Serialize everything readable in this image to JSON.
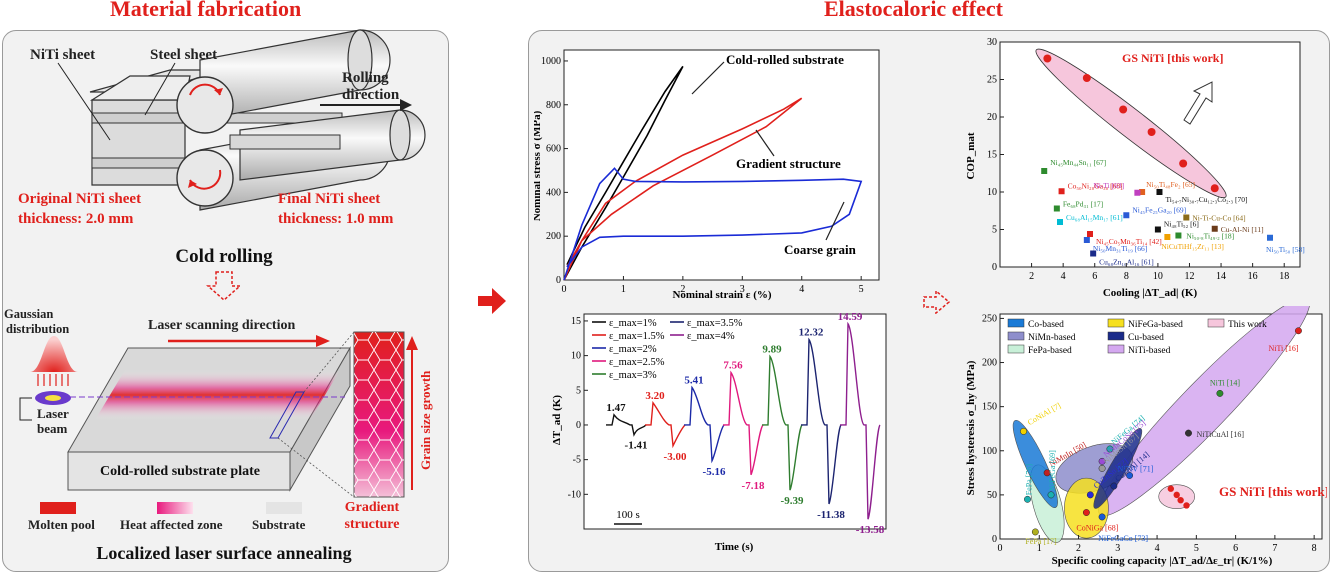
{
  "titles": {
    "left": "Material fabrication",
    "right": "Elastocaloric effect"
  },
  "fabrication": {
    "nitisheet": "NiTi sheet",
    "steelsheet": "Steel sheet",
    "rolling_dir_1": "Rolling",
    "rolling_dir_2": "direction",
    "orig_1": "Original NiTi sheet",
    "orig_2": "thickness: 2.0 mm",
    "final_1": "Final NiTi sheet",
    "final_2": "thickness: 1.0 mm",
    "cold_rolling": "Cold rolling",
    "gauss_1": "Gaussian",
    "gauss_2": "distribution",
    "laser_dir": "Laser scanning direction",
    "laser_1": "Laser",
    "laser_2": "beam",
    "substrate_plate": "Cold-rolled substrate plate",
    "grain_growth": "Grain size growth",
    "gradient_1": "Gradient",
    "gradient_2": "structure",
    "legend_molten": "Molten pool",
    "legend_haz": "Heat affected zone",
    "legend_sub": "Substrate",
    "annealing": "Localized laser surface annealing",
    "colors": {
      "red": "#e0201c",
      "magenta": "#e8197d"
    }
  },
  "chart_data": [
    {
      "type": "line",
      "xlabel": "Nominal strain ε (%)",
      "ylabel": "Nominal stress σ (MPa)",
      "xlim": [
        0,
        5.3
      ],
      "ylim": [
        0,
        1050
      ],
      "xticks": [
        "0",
        "1",
        "2",
        "3",
        "4",
        "5"
      ],
      "yticks": [
        "0",
        "200",
        "400",
        "600",
        "800",
        "1000"
      ],
      "annotations": [
        "Cold-rolled substrate",
        "Gradient structure",
        "Coarse grain"
      ],
      "series": [
        {
          "color": "#000000",
          "x": [
            0,
            0.3,
            0.7,
            1.0,
            1.4,
            1.7,
            2.0,
            1.7,
            1.3,
            1.0,
            0.7,
            0.35,
            0.05
          ],
          "y": [
            0,
            150,
            330,
            470,
            660,
            820,
            975,
            860,
            680,
            540,
            400,
            240,
            70
          ]
        },
        {
          "color": "#e0201c",
          "x": [
            0,
            0.3,
            0.7,
            1.2,
            2.0,
            3.0,
            3.7,
            4.0,
            3.4,
            2.5,
            1.5,
            0.8,
            0.3,
            0.05
          ],
          "y": [
            0,
            180,
            350,
            450,
            570,
            690,
            780,
            830,
            700,
            570,
            430,
            300,
            180,
            60
          ]
        },
        {
          "color": "#1a2bd6",
          "x": [
            0,
            0.3,
            0.6,
            0.85,
            1.0,
            1.2,
            2.0,
            3.0,
            4.0,
            4.7,
            5.0,
            4.8,
            4.5,
            4.0,
            3.0,
            2.0,
            1.0,
            0.6,
            0.3,
            0.05
          ],
          "y": [
            0,
            250,
            440,
            510,
            460,
            450,
            448,
            450,
            455,
            460,
            450,
            300,
            245,
            215,
            205,
            200,
            200,
            195,
            150,
            60
          ]
        }
      ]
    },
    {
      "type": "line",
      "xlabel": "Time (s)",
      "ylabel": "ΔT_ad (K)",
      "ylim": [
        -15,
        16
      ],
      "yticks": [
        "-10",
        "-5",
        "0",
        "5",
        "10",
        "15"
      ],
      "scalebar": "100 s",
      "legend": [
        "ε_max=1%",
        "ε_max=1.5%",
        "ε_max=2%",
        "ε_max=2.5%",
        "ε_max=3%",
        "ε_max=3.5%",
        "ε_max=4%"
      ],
      "series": [
        {
          "name": "ε_max=1%",
          "color": "#111111",
          "heat": 1.47,
          "cool": -1.41
        },
        {
          "name": "ε_max=1.5%",
          "color": "#e0201c",
          "heat": 3.2,
          "cool": -3.0
        },
        {
          "name": "ε_max=2%",
          "color": "#1c2aa8",
          "heat": 5.41,
          "cool": -5.16
        },
        {
          "name": "ε_max=2.5%",
          "color": "#e0197d",
          "heat": 7.56,
          "cool": -7.18
        },
        {
          "name": "ε_max=3%",
          "color": "#2f7d2f",
          "heat": 9.89,
          "cool": -9.39
        },
        {
          "name": "ε_max=3.5%",
          "color": "#1c2470",
          "heat": 12.32,
          "cool": -11.38
        },
        {
          "name": "ε_max=4%",
          "color": "#8e1f8e",
          "heat": 14.59,
          "cool": -13.58
        }
      ]
    },
    {
      "type": "scatter",
      "xlabel": "Cooling |ΔT_ad| (K)",
      "ylabel": "COP_mat",
      "xlim": [
        0,
        19
      ],
      "ylim": [
        0,
        30
      ],
      "xticks": [
        "2",
        "4",
        "6",
        "8",
        "10",
        "12",
        "14",
        "16",
        "18"
      ],
      "yticks": [
        "0",
        "5",
        "10",
        "15",
        "20",
        "25",
        "30"
      ],
      "highlight": "GS NiTi [this work]",
      "this_work": [
        {
          "x": 3.0,
          "y": 27.8
        },
        {
          "x": 5.5,
          "y": 25.2
        },
        {
          "x": 7.8,
          "y": 21.0
        },
        {
          "x": 9.6,
          "y": 18.0
        },
        {
          "x": 11.6,
          "y": 13.8
        },
        {
          "x": 13.6,
          "y": 10.5
        }
      ],
      "points": [
        {
          "label": "Ni₄₅Mn₄₄Sn₁₁ [67]",
          "x": 2.8,
          "y": 12.8,
          "color": "#2e8b2e"
        },
        {
          "label": "Co₅₀Ni₂₀Ga₃₀ [68]",
          "x": 3.9,
          "y": 10.1,
          "color": "#e0201c"
        },
        {
          "label": "Fe₆₈Pd₃₁ [17]",
          "x": 3.6,
          "y": 7.8,
          "color": "#2e8b2e"
        },
        {
          "label": "Cu₆₈Al₁₅Mn₁₇ [61]",
          "x": 3.8,
          "y": 6.0,
          "color": "#00bcd4"
        },
        {
          "label": "Ni₄₅Co₅Mn₃₆Ti₁₄ [42]",
          "x": 5.7,
          "y": 4.4,
          "color": "#e0201c"
        },
        {
          "label": "Ni₅₀Mn₃₁Ti₁₉ [66]",
          "x": 5.5,
          "y": 3.6,
          "color": "#2a5ad6"
        },
        {
          "label": "Cu₆₈Zn₁₆Al₁₆ [61]",
          "x": 5.9,
          "y": 1.8,
          "color": "#1a2b8a"
        },
        {
          "label": "Ni₄₅Fe₂₅Ga₂₀ [69]",
          "x": 8.0,
          "y": 6.9,
          "color": "#2a5ad6"
        },
        {
          "label": "Ni₄₈Ti₅₂ [6]",
          "x": 10.0,
          "y": 5.0,
          "color": "#111111"
        },
        {
          "label": "NiCuTiHf₁₅Zr₁₁ [13]",
          "x": 10.6,
          "y": 4.0,
          "color": "#f0a000"
        },
        {
          "label": "Ni₅₀.₈Ti₄₉.₂ [18]",
          "x": 11.3,
          "y": 4.2,
          "color": "#2e8b2e"
        },
        {
          "label": "Ni₅₀Ti₄₈Fe₂ [65]",
          "x": 9.0,
          "y": 10.0,
          "color": "#e06020"
        },
        {
          "label": "Ni-Ti [63]",
          "x": 8.7,
          "y": 9.9,
          "color": "#c040c0"
        },
        {
          "label": "Ti₅₄.₇Ni₃₀.₇Cu₁₂.₃Co₂.₃ [70]",
          "x": 10.1,
          "y": 10.0,
          "color": "#111111"
        },
        {
          "label": "Ni-Ti-Cu-Co [64]",
          "x": 11.8,
          "y": 6.6,
          "color": "#8b6b1a"
        },
        {
          "label": "Cu-Al-Ni [11]",
          "x": 13.6,
          "y": 5.1,
          "color": "#6b3b1a"
        },
        {
          "label": "Ni₅₀Ti₅₀ [58]",
          "x": 17.1,
          "y": 3.9,
          "color": "#2a6ad6"
        }
      ]
    },
    {
      "type": "scatter",
      "xlabel": "Specific cooling capacity |ΔT_ad/Δε_tr| (K/1%)",
      "ylabel": "Stress hysteresis σ_hy (MPa)",
      "xlim": [
        0,
        8.2
      ],
      "ylim": [
        0,
        255
      ],
      "xticks": [
        "0",
        "1",
        "2",
        "3",
        "4",
        "5",
        "6",
        "7",
        "8"
      ],
      "yticks": [
        "0",
        "50",
        "100",
        "150",
        "200",
        "250"
      ],
      "legend": [
        "Co-based",
        "NiFeGa-based",
        "This work",
        "NiMn-based",
        "Cu-based",
        "FePa-based",
        "NiTi-based"
      ],
      "highlight": "GS NiTi [this work]",
      "points": [
        {
          "label": "NiTi [16]",
          "x": 7.6,
          "y": 236,
          "color": "#e0201c"
        },
        {
          "label": "NiTi [14]",
          "x": 5.6,
          "y": 165,
          "color": "#2e8b2e"
        },
        {
          "label": "NiTiCuAl [16]",
          "x": 4.8,
          "y": 120,
          "color": "#333333"
        },
        {
          "label": "NiTiV [71]",
          "x": 3.3,
          "y": 72,
          "color": "#1a5ad6"
        },
        {
          "label": "CoNiAl [7]",
          "x": 0.6,
          "y": 122,
          "color": "#f0d000"
        },
        {
          "label": "NiMnIn [50]",
          "x": 1.2,
          "y": 75,
          "color": "#c02020"
        },
        {
          "label": "NiFeGa [74]",
          "x": 2.8,
          "y": 102,
          "color": "#1ab0b0"
        },
        {
          "label": "NiMnCoSn [75]",
          "x": 2.6,
          "y": 88,
          "color": "#9a4ad6"
        },
        {
          "label": "NiMnSn [67]",
          "x": 2.6,
          "y": 80,
          "color": "#9a9a9a"
        },
        {
          "label": "CuZnAl [14]",
          "x": 2.9,
          "y": 60,
          "color": "#1a2b8a"
        },
        {
          "label": "FePa [76]",
          "x": 0.7,
          "y": 45,
          "color": "#1ab0b0"
        },
        {
          "label": "NiFeGa [69]",
          "x": 1.3,
          "y": 50,
          "color": "#1ab0b0"
        },
        {
          "label": "FePa [17]",
          "x": 0.9,
          "y": 8,
          "color": "#b0b020"
        },
        {
          "label": "CoNiGa [68]",
          "x": 2.2,
          "y": 30,
          "color": "#e0201c"
        },
        {
          "label": "NiFeGaCo [73]",
          "x": 2.6,
          "y": 25,
          "color": "#1a5ad6"
        },
        {
          "label": "CuZnSn [72]",
          "x": 2.3,
          "y": 50,
          "color": "#2a2ad6"
        }
      ],
      "this_work": [
        {
          "x": 4.35,
          "y": 57
        },
        {
          "x": 4.5,
          "y": 50
        },
        {
          "x": 4.6,
          "y": 44
        },
        {
          "x": 4.75,
          "y": 38
        }
      ]
    }
  ]
}
